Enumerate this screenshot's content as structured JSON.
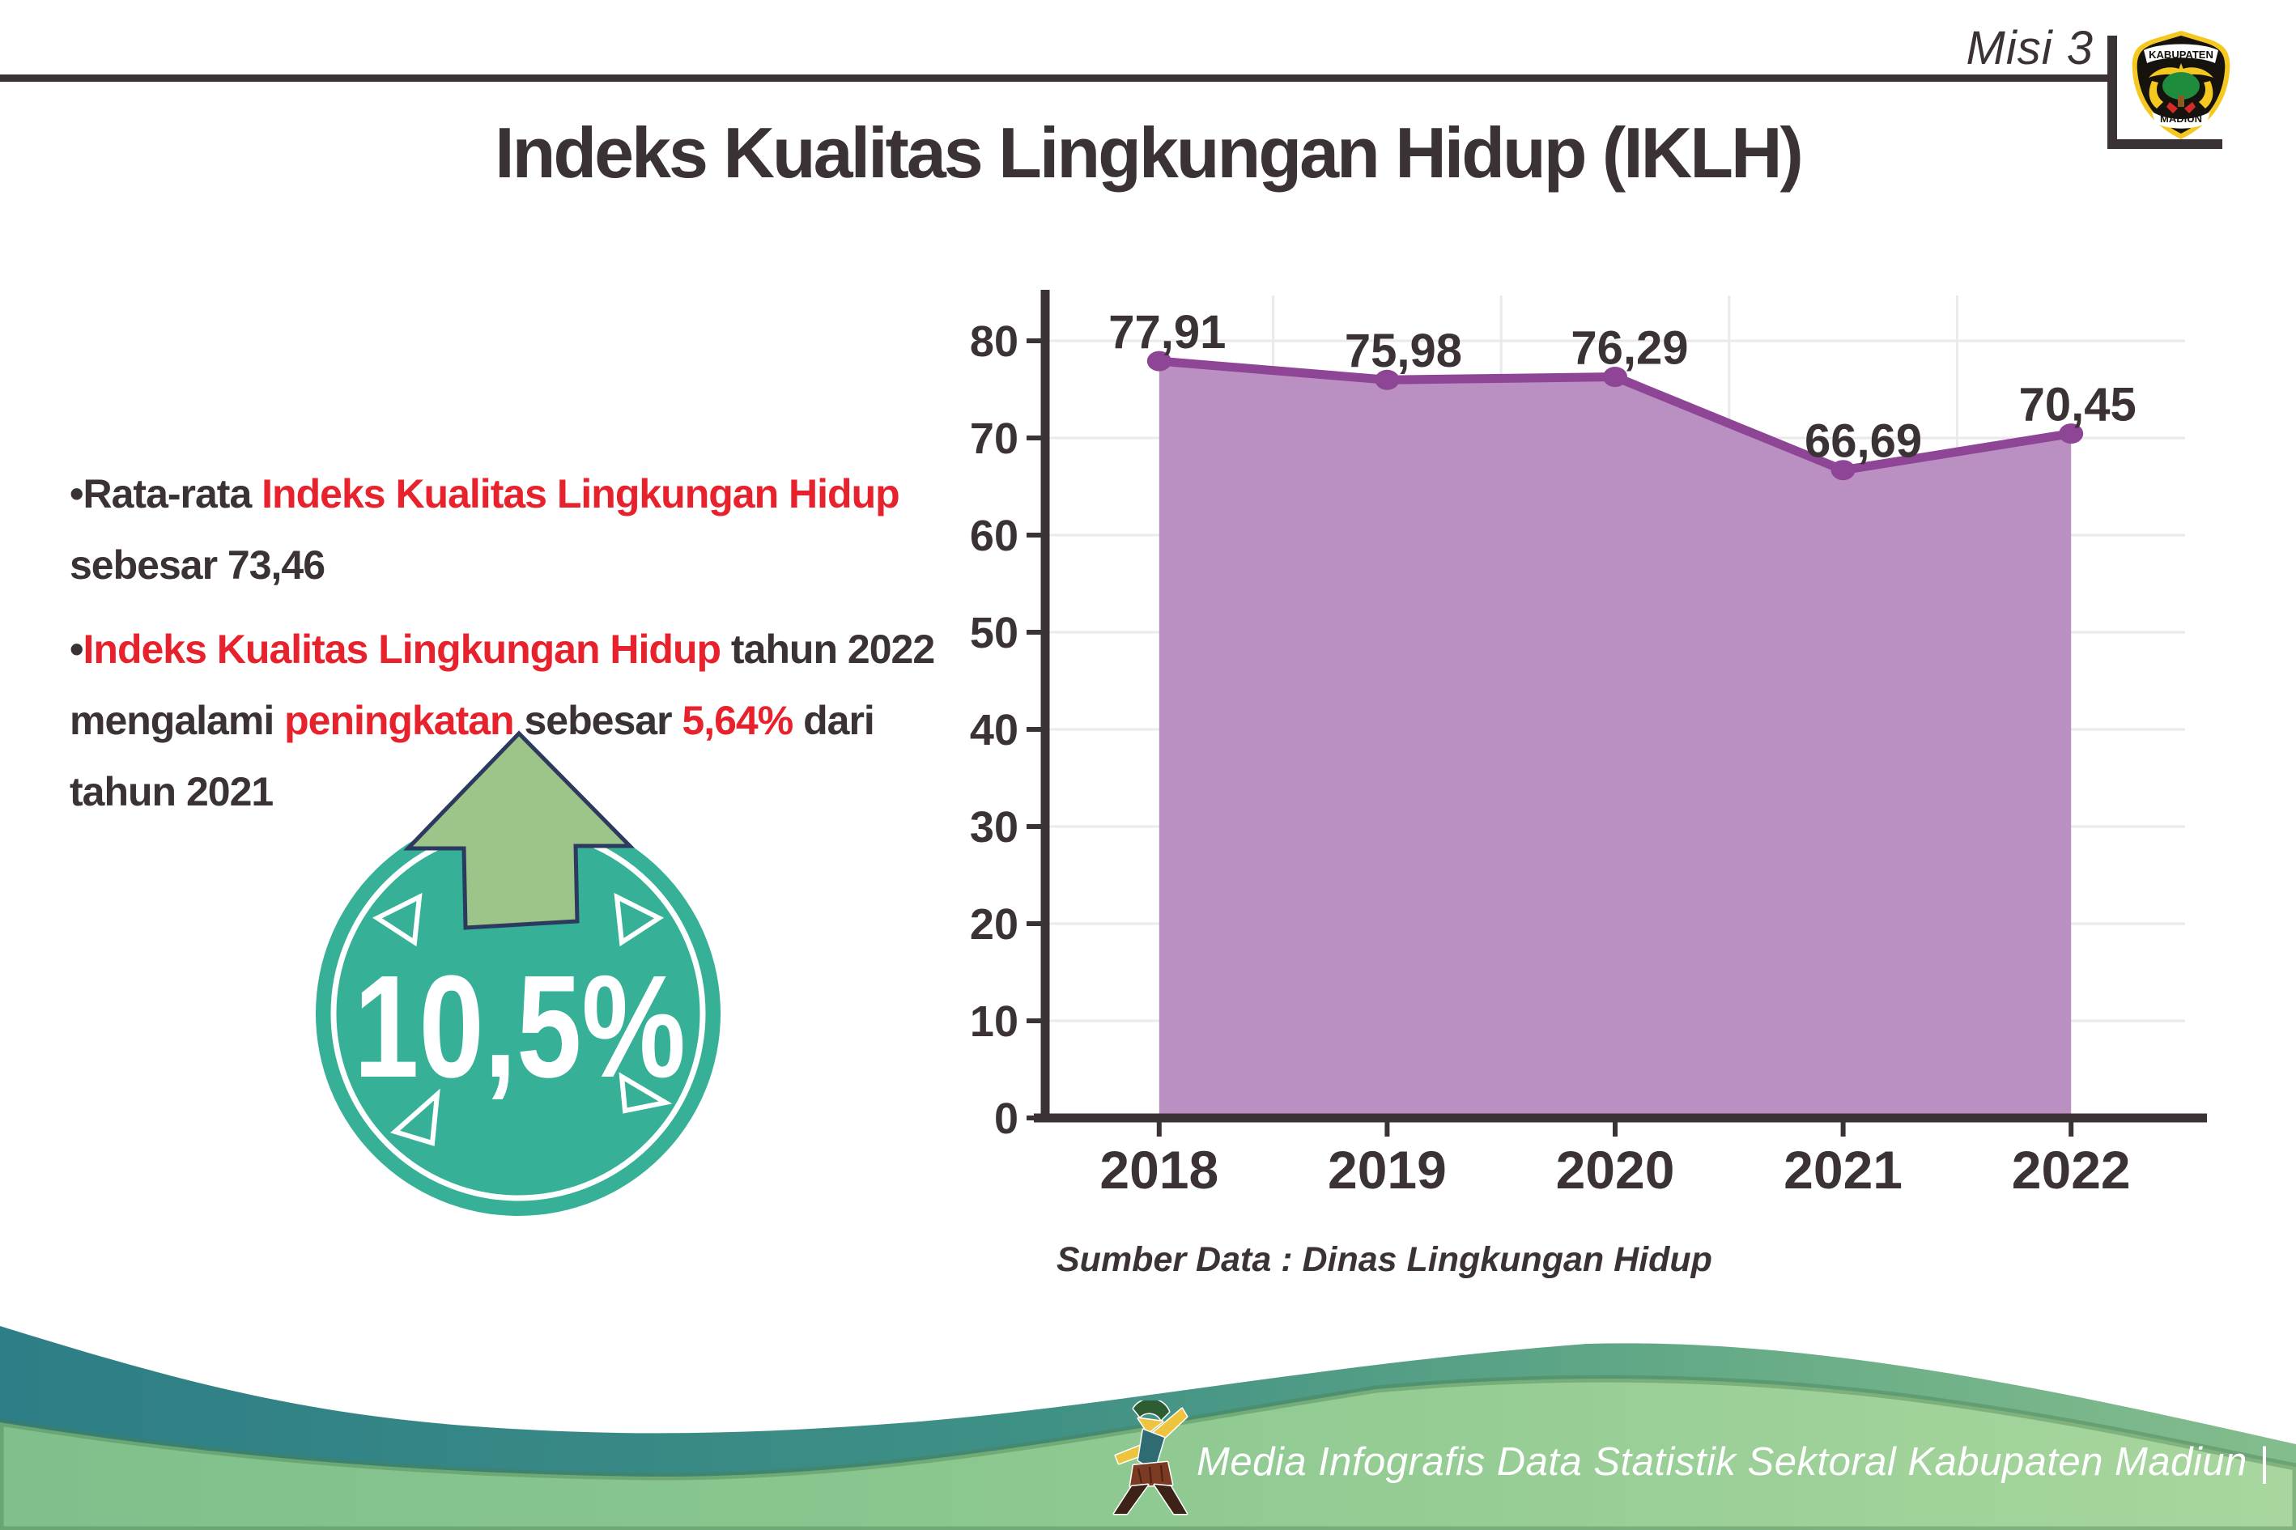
{
  "header": {
    "misi": "Misi 3",
    "title": "Indeks Kualitas Lingkungan Hidup (IKLH)"
  },
  "logo": {
    "top": "KABUPATEN",
    "bottom": "MADIUN"
  },
  "bullets": {
    "b1": {
      "marker": "•",
      "seg1": "Rata-rata ",
      "seg2": "Indeks Kualitas Lingkungan Hidup",
      "seg3": "sebesar 73,46"
    },
    "b2": {
      "marker": "•",
      "seg1": "Indeks Kualitas Lingkungan Hidup",
      "seg2": " tahun 2022",
      "seg3": "mengalami ",
      "seg4": "peningkatan",
      "seg5": " sebesar ",
      "seg6": "5,64%",
      "seg7": " dari",
      "seg8": "tahun 2021"
    }
  },
  "badge": {
    "value": "10,5%"
  },
  "chart_data": {
    "type": "area",
    "categories": [
      "2018",
      "2019",
      "2020",
      "2021",
      "2022"
    ],
    "series": [
      {
        "name": "IKLH",
        "values": [
          77.91,
          75.98,
          76.29,
          66.69,
          70.45
        ]
      }
    ],
    "point_labels": [
      "77,91",
      "75,98",
      "76,29",
      "66,69",
      "70,45"
    ],
    "yticks": [
      0,
      10,
      20,
      30,
      40,
      50,
      60,
      70,
      80
    ],
    "ylim": [
      0,
      85
    ],
    "grid": true,
    "legend": "none",
    "source": "Sumber Data : Dinas Lingkungan Hidup"
  },
  "footer": {
    "credit": "Media Infografis Data Statistik Sektoral Kabupaten Madiun |"
  },
  "colors": {
    "text_dark": "#3a3234",
    "accent_red": "#e8222d",
    "area_fill": "#b990c1",
    "line_purple": "#8e4595",
    "grid": "#ebe9e9",
    "badge_teal": "#36b096",
    "arrow_green": "#9dc489",
    "arrow_outline": "#2b3a5e",
    "footer_teal": "#2d7e86",
    "footer_green": "#84bd8d",
    "footer_front_left": "#7fc08c",
    "footer_front_right": "#a8d69e"
  }
}
